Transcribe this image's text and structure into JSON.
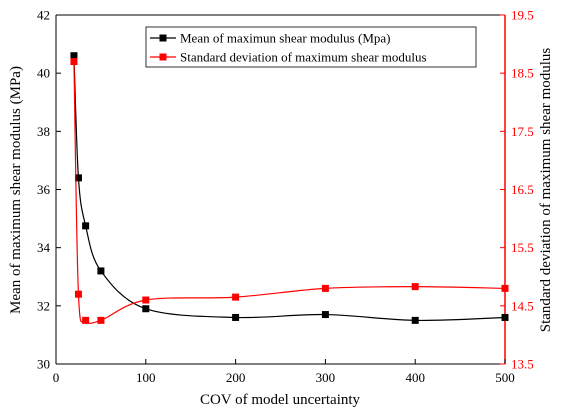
{
  "chart_data": {
    "type": "line",
    "xlabel": "COV of model uncertainty",
    "ylabel_left": "Mean of maximum shear modulus (MPa)",
    "ylabel_right": "Standard deviation of maximum shear modulus",
    "xlim": [
      0,
      500
    ],
    "ylim_left": [
      30,
      42
    ],
    "ylim_right": [
      13.5,
      19.5
    ],
    "x_ticks": [
      "0",
      "100",
      "200",
      "300",
      "400",
      "500"
    ],
    "y_left_ticks": [
      "30",
      "32",
      "34",
      "36",
      "38",
      "40",
      "42"
    ],
    "y_right_ticks": [
      "13.5",
      "14.5",
      "15.5",
      "16.5",
      "17.5",
      "18.5",
      "19.5"
    ],
    "legend_position": "top-right",
    "series": [
      {
        "name": "Mean of maximun shear modulus (Mpa)",
        "axis": "left",
        "color": "#000000",
        "x": [
          20,
          25,
          33,
          50,
          100,
          200,
          300,
          400,
          500
        ],
        "y": [
          40.6,
          36.4,
          34.75,
          33.2,
          31.9,
          31.6,
          31.7,
          31.5,
          31.6
        ]
      },
      {
        "name": "Standard deviation of maximum shear modulus",
        "axis": "right",
        "color": "#ff0000",
        "x": [
          20,
          25,
          33,
          50,
          100,
          200,
          300,
          400,
          500
        ],
        "y": [
          18.7,
          14.7,
          14.25,
          14.25,
          14.6,
          14.65,
          14.8,
          14.83,
          14.8
        ]
      }
    ]
  }
}
